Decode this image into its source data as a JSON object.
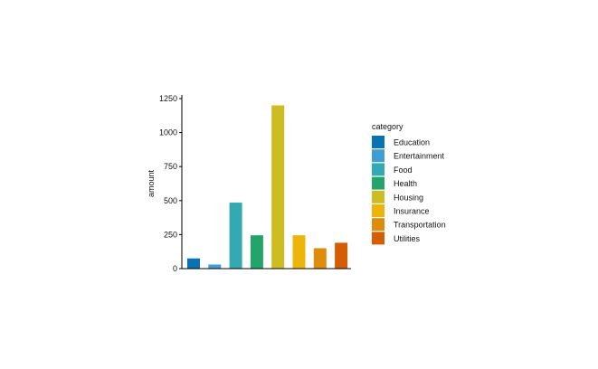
{
  "chart_data": {
    "type": "bar",
    "categories": [
      "Education",
      "Entertainment",
      "Food",
      "Health",
      "Housing",
      "Insurance",
      "Transportation",
      "Utilities"
    ],
    "values": [
      75,
      30,
      485,
      245,
      1200,
      245,
      150,
      190
    ],
    "colors": [
      "#0773b2",
      "#3d9fd6",
      "#33aab2",
      "#22a46a",
      "#cdbd22",
      "#edb50a",
      "#e08c0b",
      "#d55e04"
    ],
    "xlabel": "",
    "ylabel": "amount",
    "ylim": [
      0,
      1250
    ],
    "yticks": [
      0,
      250,
      500,
      750,
      1000,
      1250
    ],
    "ytick_labels": [
      "0",
      "250",
      "500",
      "750",
      "1000",
      "1250"
    ],
    "grid": false,
    "legend": {
      "title": "category",
      "placement": "right",
      "entries": [
        "Education",
        "Entertainment",
        "Food",
        "Health",
        "Housing",
        "Insurance",
        "Transportation",
        "Utilities"
      ]
    }
  }
}
